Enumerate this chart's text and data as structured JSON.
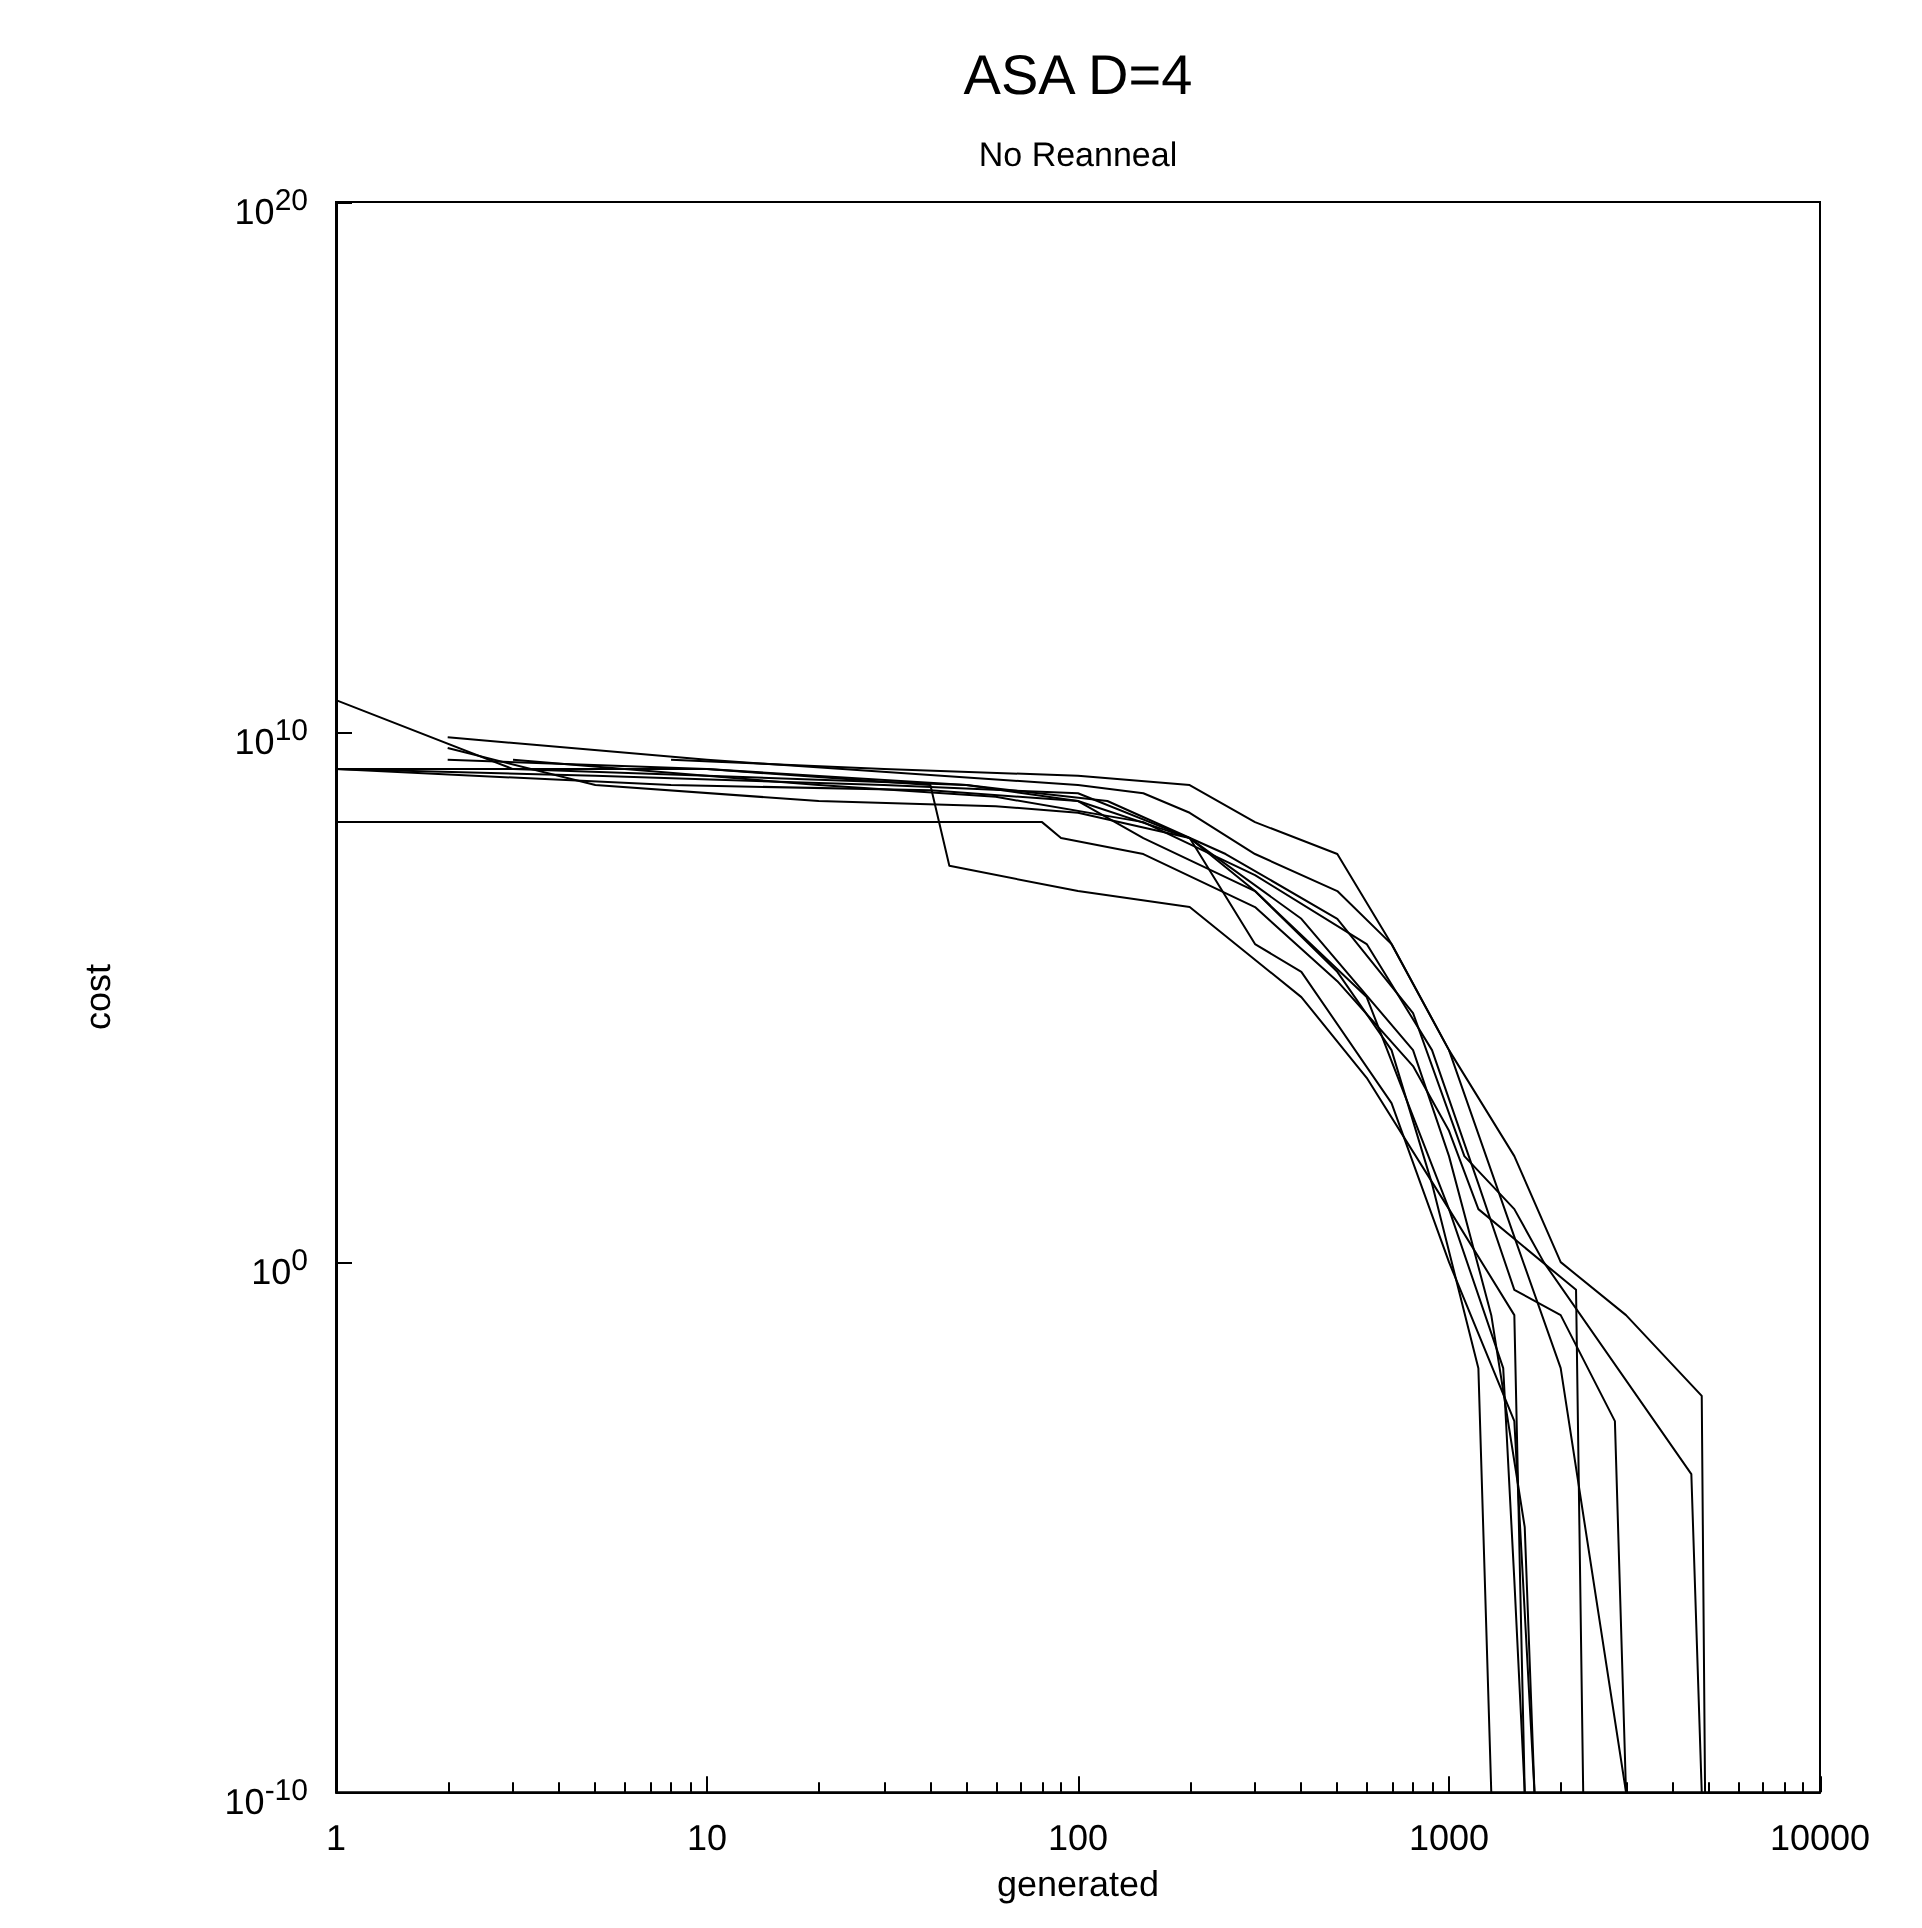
{
  "chart_data": {
    "type": "line",
    "title": "ASA D=4",
    "subtitle": "No Reanneal",
    "xlabel": "generated",
    "ylabel": "cost",
    "log": "xy",
    "grid": false,
    "marker": "none",
    "line_style": "solid",
    "xlim": [
      1,
      10000
    ],
    "xticks": [
      1,
      10,
      100,
      1000,
      10000
    ],
    "ylim": [
      1e-10,
      1e+20
    ],
    "yticks": [
      {
        "value": 1e-10,
        "label": "10$^{-10}$"
      },
      {
        "value": 1,
        "label": "10$^{0}$"
      },
      {
        "value": 10000000000.0,
        "label": "10$^{10}$"
      },
      {
        "value": 1e+20,
        "label": "10$^{20}$"
      }
    ],
    "series": [
      {
        "color": "#000000",
        "x": [
          1,
          3,
          10,
          50,
          100,
          150,
          300,
          500,
          700,
          900,
          1200,
          1300
        ],
        "values": [
          40000000000.0,
          2000000000.0,
          1500000000.0,
          1000000000.0,
          500000000.0,
          100000000.0,
          10000000.0,
          300000.0,
          10000.0,
          30,
          0.01,
          1e-10
        ]
      },
      {
        "color": "#000000",
        "x": [
          1,
          10,
          40,
          45,
          100,
          200,
          400,
          600,
          1000,
          1500,
          1600
        ],
        "values": [
          2000000000.0,
          2000000000.0,
          1000000000.0,
          30000000.0,
          10000000.0,
          5000000.0,
          100000.0,
          3000.0,
          10,
          0.1,
          1e-10
        ]
      },
      {
        "color": "#000000",
        "x": [
          1,
          80,
          90,
          150,
          300,
          500,
          800,
          1000,
          1200,
          2200,
          2300
        ],
        "values": [
          200000000.0,
          200000000.0,
          100000000.0,
          50000000.0,
          5000000.0,
          200000.0,
          5000.0,
          300,
          10,
          0.3,
          1e-10
        ]
      },
      {
        "color": "#000000",
        "x": [
          2,
          10,
          100,
          150,
          200,
          300,
          500,
          700,
          1000,
          1500,
          2000,
          3000
        ],
        "values": [
          8000000000.0,
          3000000000.0,
          1000000000.0,
          700000000.0,
          300000000.0,
          50000000.0,
          10000000.0,
          1000000.0,
          10000.0,
          3,
          0.01,
          1e-10
        ]
      },
      {
        "color": "#000000",
        "x": [
          2,
          5,
          20,
          60,
          100,
          200,
          300,
          400,
          700,
          1000,
          1500,
          1700
        ],
        "values": [
          5000000000.0,
          1000000000.0,
          500000000.0,
          400000000.0,
          300000000.0,
          100000000.0,
          1000000.0,
          300000.0,
          1000.0,
          1,
          0.001,
          1e-10
        ]
      },
      {
        "color": "#000000",
        "x": [
          8,
          30,
          100,
          200,
          300,
          500,
          700,
          1000,
          1500,
          2000,
          3000,
          4800,
          4900
        ],
        "values": [
          3000000000.0,
          2000000000.0,
          1500000000.0,
          1000000000.0,
          200000000.0,
          50000000.0,
          1000000.0,
          10000.0,
          100,
          1,
          0.1,
          0.003,
          1e-10
        ]
      },
      {
        "color": "#000000",
        "x": [
          3,
          20,
          60,
          150,
          300,
          600,
          900,
          1200,
          1500,
          2000,
          2800,
          3000
        ],
        "values": [
          3000000000.0,
          1000000000.0,
          600000000.0,
          200000000.0,
          20000000.0,
          1000000.0,
          10000.0,
          30,
          0.3,
          0.1,
          0.001,
          1e-10
        ]
      },
      {
        "color": "#000000",
        "x": [
          1,
          5,
          30,
          100,
          200,
          400,
          800,
          1000,
          1300,
          1600,
          1700
        ],
        "values": [
          2000000000.0,
          1500000000.0,
          1000000000.0,
          700000000.0,
          100000000.0,
          3000000.0,
          10000.0,
          100,
          0.1,
          1e-05,
          1e-10
        ]
      },
      {
        "color": "#000000",
        "x": [
          2,
          10,
          50,
          120,
          250,
          500,
          800,
          1100,
          1500,
          1800,
          4500,
          4800
        ],
        "values": [
          3000000000.0,
          2000000000.0,
          1000000000.0,
          500000000.0,
          50000000.0,
          3000000.0,
          50000.0,
          100,
          10,
          1,
          0.0001,
          1e-10
        ]
      },
      {
        "color": "#000000",
        "x": [
          1,
          8,
          40,
          100,
          200,
          300,
          600,
          1000,
          1400,
          1500,
          1600
        ],
        "values": [
          2000000000.0,
          1000000000.0,
          800000000.0,
          500000000.0,
          100000000.0,
          10000000.0,
          100000.0,
          10,
          0.01,
          1e-06,
          1e-10
        ]
      }
    ]
  }
}
